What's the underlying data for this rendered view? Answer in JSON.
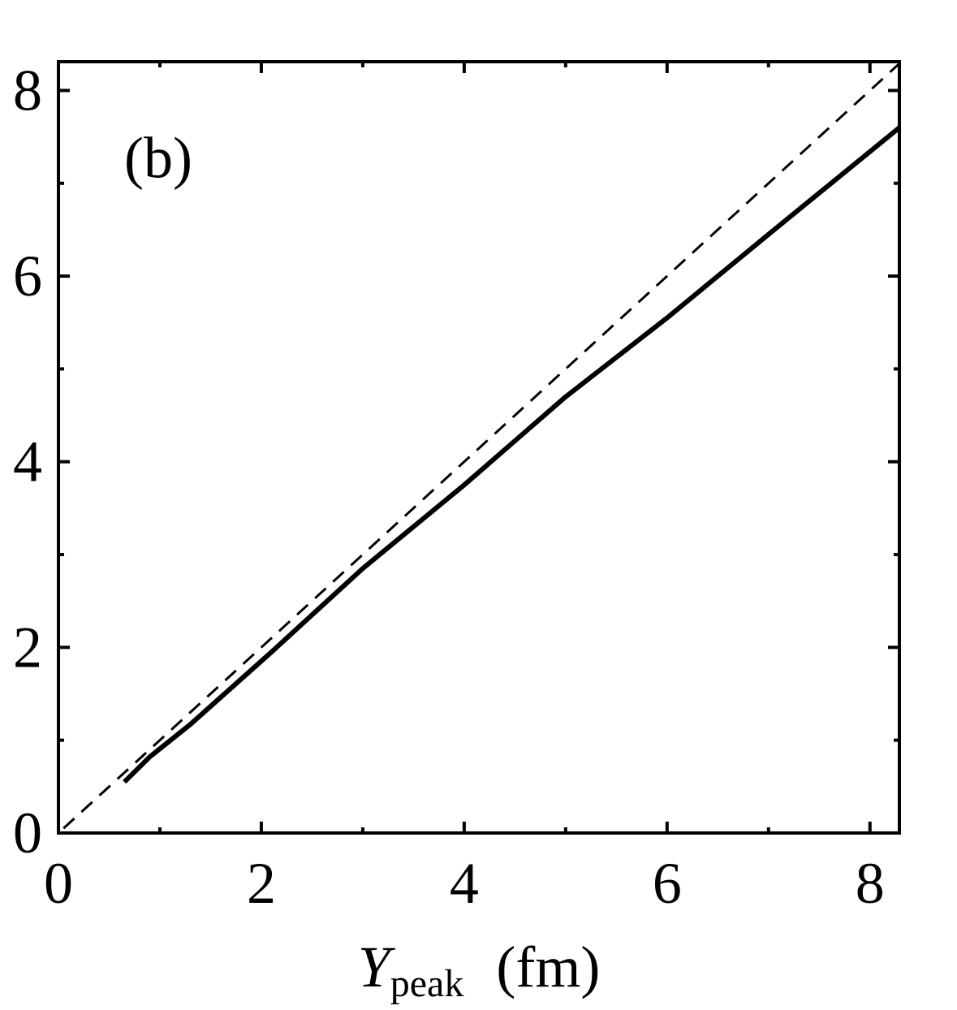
{
  "chart_data": {
    "type": "line",
    "annotation": "(b)",
    "xlabel": {
      "symbol": "Y",
      "subscript": "peak",
      "unit": "(fm)"
    },
    "xlim": [
      0,
      8.29
    ],
    "ylim": [
      0,
      8.31
    ],
    "xticks": [
      0,
      2,
      4,
      6,
      8
    ],
    "yticks": [
      0,
      2,
      4,
      6,
      8
    ],
    "xminorticks": [
      1,
      3,
      5,
      7
    ],
    "yminorticks": [
      1,
      3,
      5,
      7
    ],
    "series": [
      {
        "color": "#000000",
        "style": "solid",
        "x": [
          0.65,
          0.9,
          1.3,
          2.1,
          3.0,
          4.0,
          5.0,
          6.0,
          7.0,
          8.29
        ],
        "values": [
          0.55,
          0.82,
          1.17,
          1.95,
          2.85,
          3.75,
          4.7,
          5.55,
          6.45,
          7.6
        ]
      },
      {
        "color": "#000000",
        "style": "dashed",
        "x": [
          0.05,
          8.29
        ],
        "values": [
          0.05,
          8.29
        ]
      }
    ]
  }
}
